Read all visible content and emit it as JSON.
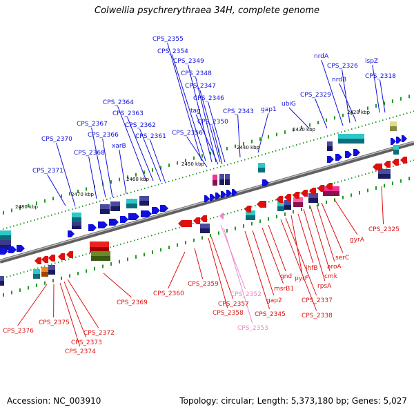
{
  "title": "Colwellia psychrerythraea 34H, complete genome",
  "footer": {
    "accession": "Accession: NC_003910",
    "info": "Topology: circular; Length: 5,373,180 bp; Genes: 5,027"
  },
  "colors": {
    "forward": "#1010dd",
    "reverse": "#dd1010",
    "pseudo": "#ee88cc",
    "backbone": "#808080",
    "tick": "#229922"
  },
  "kbp_labels": [
    "2420 kbp",
    "2430 kbp",
    "2440 kbp",
    "2450 kbp",
    "2460 kbp",
    "2470 kbp",
    "2480 kbp"
  ],
  "forward_genes": [
    "CPS_2355",
    "CPS_2354",
    "CPS_2349",
    "CPS_2348",
    "CPS_2347",
    "CPS_2346",
    "tag",
    "CPS_2350",
    "CPS_2356",
    "CPS_2364",
    "CPS_2363",
    "CPS_2362",
    "CPS_2361",
    "CPS_2367",
    "CPS_2366",
    "xarB",
    "CPS_2368",
    "CPS_2370",
    "CPS_2371",
    "CPS_2343",
    "gap1",
    "ubiG",
    "CPS_2329",
    "nrdA",
    "CPS_2326",
    "nrdB",
    "ispZ",
    "CPS_2318"
  ],
  "reverse_genes": [
    "CPS_2325",
    "gyrA",
    "serC",
    "aroA",
    "cmk",
    "rpsA",
    "ihfB",
    "pyrF",
    "CPS_2337",
    "CPS_2338",
    "gnd",
    "msrB1",
    "gap2",
    "CPS_2345",
    "CPS_2358",
    "CPS_2357",
    "CPS_2359",
    "CPS_2360",
    "CPS_2369",
    "CPS_2372",
    "CPS_2373",
    "CPS_2374",
    "CPS_2375",
    "CPS_2376"
  ],
  "pseudo_genes": [
    "CPS_2352",
    "CPS_2353"
  ]
}
